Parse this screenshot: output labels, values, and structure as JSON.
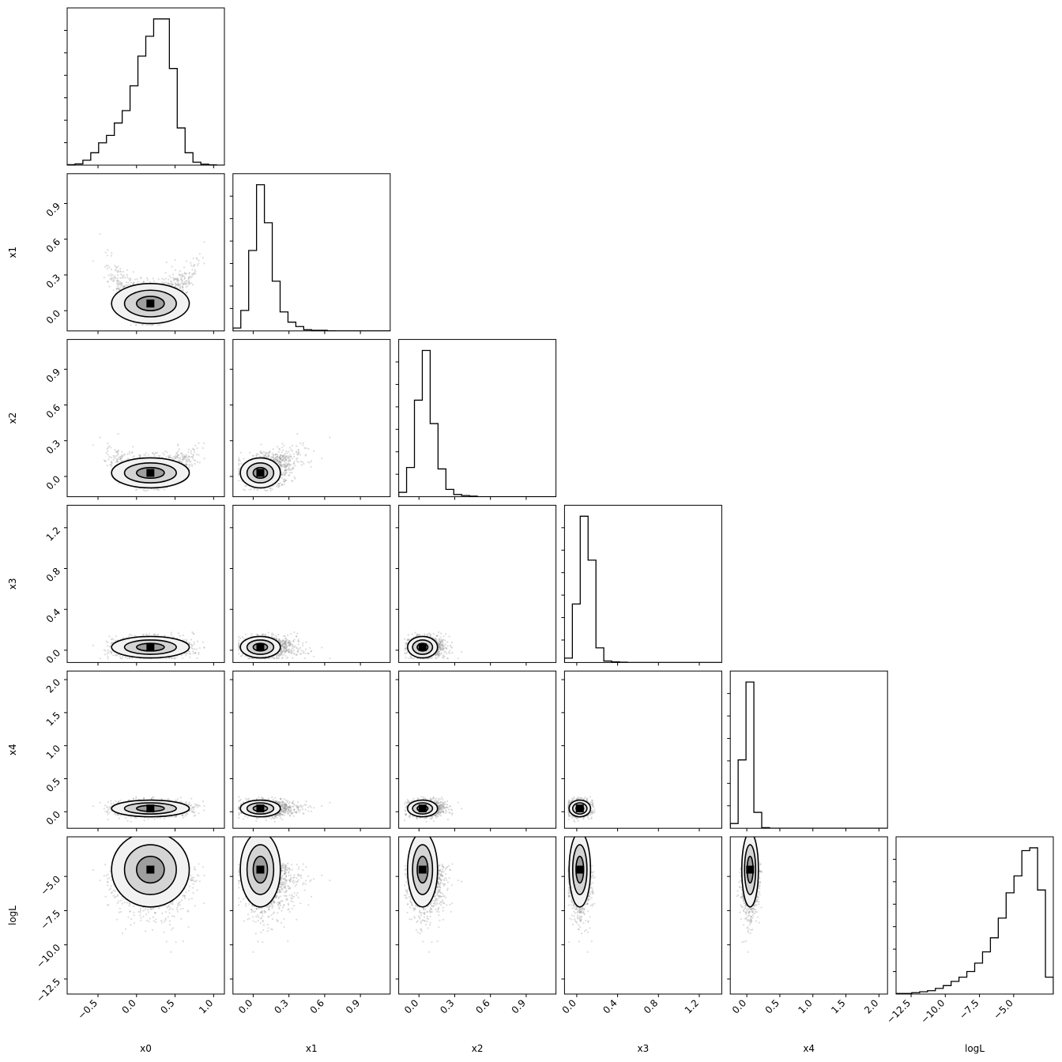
{
  "chart_data": {
    "type": "corner",
    "parameters": [
      "x0",
      "x1",
      "x2",
      "x3",
      "x4",
      "logL"
    ],
    "ranges": {
      "x0": [
        -0.9,
        1.14
      ],
      "x1": [
        -0.17,
        1.15
      ],
      "x2": [
        -0.17,
        1.15
      ],
      "x3": [
        -0.12,
        1.42
      ],
      "x4": [
        -0.25,
        2.13
      ],
      "logL": [
        -13.6,
        -2.1
      ]
    },
    "ticks": {
      "x0": [
        -0.5,
        0.0,
        0.5,
        1.0
      ],
      "x1": [
        0.0,
        0.3,
        0.6,
        0.9
      ],
      "x2": [
        0.0,
        0.3,
        0.6,
        0.9
      ],
      "x3": [
        0.0,
        0.4,
        0.8,
        1.2
      ],
      "x4": [
        0.0,
        0.5,
        1.0,
        1.5,
        2.0
      ],
      "logL": [
        -12.5,
        -10.0,
        -7.5,
        -5.0
      ]
    },
    "tick_labels": {
      "x0": [
        "−0.5",
        "0.0",
        "0.5",
        "1.0"
      ],
      "x1": [
        "0.0",
        "0.3",
        "0.6",
        "0.9"
      ],
      "x2": [
        "0.0",
        "0.3",
        "0.6",
        "0.9"
      ],
      "x3": [
        "0.0",
        "0.4",
        "0.8",
        "1.2"
      ],
      "x4": [
        "0.0",
        "0.5",
        "1.0",
        "1.5",
        "2.0"
      ],
      "logL": [
        "−12.5",
        "−10.0",
        "−7.5",
        "−5.0"
      ]
    },
    "histograms": {
      "x0": [
        0.002,
        0.005,
        0.02,
        0.05,
        0.09,
        0.12,
        0.17,
        0.22,
        0.32,
        0.44,
        0.52,
        0.59,
        0.59,
        0.39,
        0.15,
        0.05,
        0.012,
        0.004,
        0.001,
        0
      ],
      "x1": [
        0.02,
        0.14,
        0.55,
        1.0,
        0.74,
        0.34,
        0.13,
        0.06,
        0.03,
        0.008,
        0.004,
        0.004,
        0.001,
        0,
        0,
        0,
        0,
        0,
        0,
        0
      ],
      "x2": [
        0.03,
        0.2,
        0.66,
        1.0,
        0.5,
        0.19,
        0.05,
        0.015,
        0.008,
        0.004,
        0,
        0,
        0,
        0,
        0,
        0,
        0,
        0,
        0,
        0
      ],
      "x3": [
        0.03,
        0.4,
        1.0,
        0.7,
        0.1,
        0.01,
        0.004,
        0.002,
        0,
        0,
        0,
        0,
        0,
        0,
        0,
        0,
        0,
        0,
        0,
        0
      ],
      "x4": [
        0.03,
        0.43,
        0.92,
        0.1,
        0.004,
        0,
        0,
        0,
        0,
        0,
        0,
        0,
        0,
        0,
        0,
        0,
        0,
        0,
        0,
        0
      ],
      "logL": [
        0.002,
        0.002,
        0.005,
        0.008,
        0.012,
        0.02,
        0.03,
        0.045,
        0.06,
        0.08,
        0.11,
        0.15,
        0.2,
        0.27,
        0.36,
        0.42,
        0.51,
        0.52,
        0.37,
        0.06
      ]
    },
    "centers": {
      "x0": 0.18,
      "x1": 0.06,
      "x2": 0.03,
      "x3": 0.03,
      "x4": 0.05,
      "logL": -4.5
    },
    "spreads": {
      "x0": 0.24,
      "x1": 0.08,
      "x2": 0.06,
      "x3": 0.05,
      "x4": 0.06,
      "logL": 1.3
    },
    "labels": {
      "x0": "x0",
      "x1": "x1",
      "x2": "x2",
      "x3": "x3",
      "x4": "x4",
      "logL": "logL"
    }
  }
}
